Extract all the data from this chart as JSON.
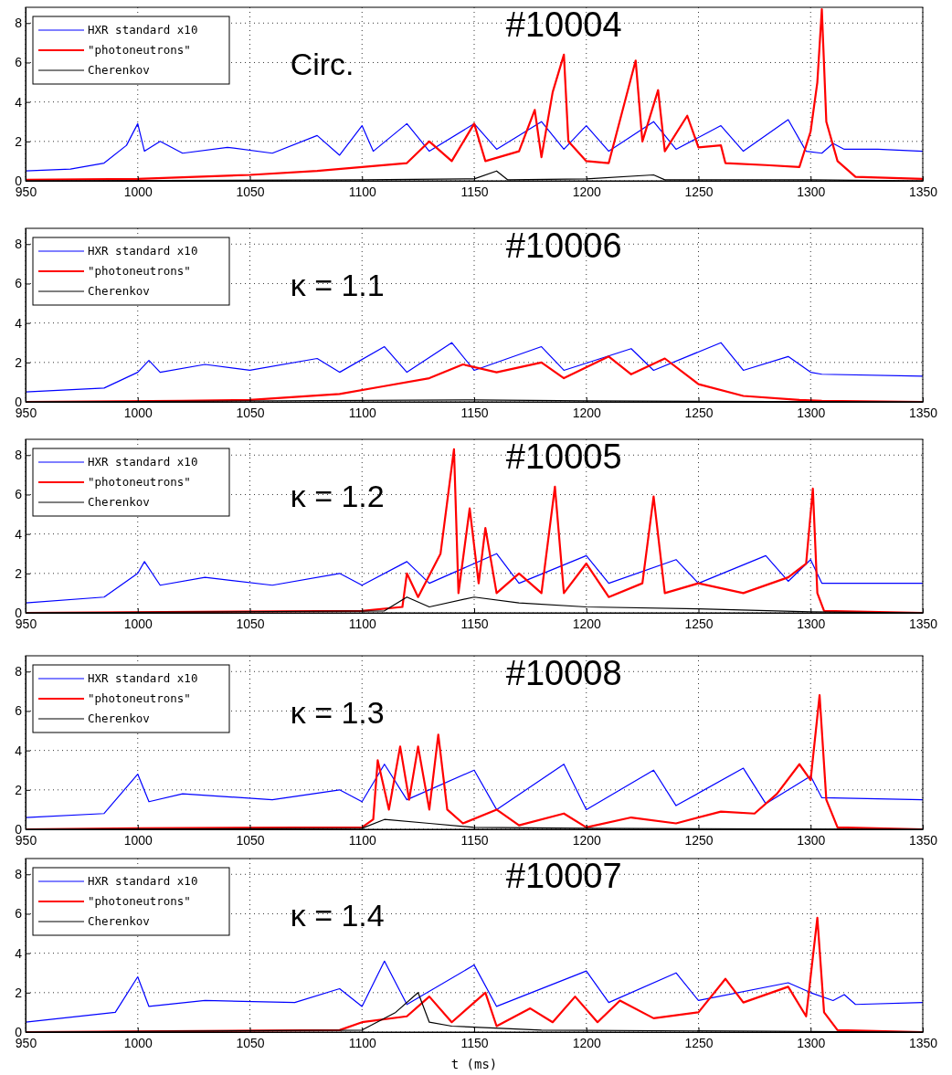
{
  "chart_data": [
    {
      "type": "line",
      "xlim": [
        950,
        1350
      ],
      "xticks": [
        950,
        1000,
        1050,
        1100,
        1150,
        1200,
        1250,
        1300,
        1350
      ],
      "ylim": [
        0,
        8.8
      ],
      "yticks": [
        0,
        2,
        4,
        6,
        8
      ],
      "grid": true,
      "legend": "top left",
      "annotations": [
        "#10004",
        "Circ."
      ],
      "series": [
        {
          "name": "HXR standard x10",
          "color": "#0000ff",
          "x": [
            950,
            970,
            985,
            995,
            1000,
            1003,
            1010,
            1020,
            1040,
            1060,
            1080,
            1090,
            1100,
            1105,
            1120,
            1130,
            1150,
            1160,
            1180,
            1190,
            1200,
            1210,
            1230,
            1240,
            1260,
            1270,
            1290,
            1298,
            1305,
            1310,
            1315,
            1330,
            1350
          ],
          "values": [
            0.5,
            0.6,
            0.9,
            1.8,
            2.9,
            1.5,
            2.0,
            1.4,
            1.7,
            1.4,
            2.3,
            1.3,
            2.8,
            1.5,
            2.9,
            1.5,
            2.9,
            1.6,
            3.0,
            1.6,
            2.8,
            1.5,
            3.0,
            1.6,
            2.8,
            1.5,
            3.1,
            1.5,
            1.4,
            1.9,
            1.6,
            1.6,
            1.5
          ]
        },
        {
          "name": "\"photoneutrons\"",
          "color": "#ff0000",
          "x": [
            950,
            1000,
            1050,
            1080,
            1100,
            1120,
            1130,
            1140,
            1150,
            1155,
            1170,
            1177,
            1180,
            1185,
            1190,
            1192,
            1200,
            1210,
            1222,
            1225,
            1232,
            1235,
            1245,
            1250,
            1260,
            1262,
            1280,
            1295,
            1300,
            1303,
            1305,
            1307,
            1312,
            1320,
            1350
          ],
          "values": [
            0.05,
            0.1,
            0.3,
            0.5,
            0.7,
            0.9,
            2.0,
            1.0,
            2.9,
            1.0,
            1.5,
            3.6,
            1.2,
            4.5,
            6.4,
            2.0,
            1.0,
            0.9,
            6.1,
            2.0,
            4.6,
            1.5,
            3.3,
            1.7,
            1.8,
            0.9,
            0.8,
            0.7,
            2.5,
            5.0,
            8.7,
            3.0,
            1.0,
            0.2,
            0.1
          ]
        },
        {
          "name": "Cherenkov",
          "color": "#000000",
          "x": [
            950,
            1100,
            1150,
            1160,
            1165,
            1200,
            1230,
            1235,
            1300,
            1350
          ],
          "values": [
            0,
            0.05,
            0.1,
            0.5,
            0.05,
            0.1,
            0.3,
            0.05,
            0.05,
            0
          ]
        }
      ]
    },
    {
      "type": "line",
      "xlim": [
        950,
        1350
      ],
      "xticks": [
        950,
        1000,
        1050,
        1100,
        1150,
        1200,
        1250,
        1300,
        1350
      ],
      "ylim": [
        0,
        8.8
      ],
      "yticks": [
        0,
        2,
        4,
        6,
        8
      ],
      "grid": true,
      "legend": "top left",
      "annotations": [
        "#10006",
        "κ = 1.1"
      ],
      "series": [
        {
          "name": "HXR standard x10",
          "color": "#0000ff",
          "x": [
            950,
            985,
            1000,
            1005,
            1010,
            1030,
            1050,
            1080,
            1090,
            1110,
            1120,
            1140,
            1150,
            1180,
            1190,
            1220,
            1230,
            1260,
            1270,
            1290,
            1300,
            1305,
            1350
          ],
          "values": [
            0.5,
            0.7,
            1.5,
            2.1,
            1.5,
            1.9,
            1.6,
            2.2,
            1.5,
            2.8,
            1.5,
            3.0,
            1.6,
            2.8,
            1.6,
            2.7,
            1.6,
            3.0,
            1.6,
            2.3,
            1.5,
            1.4,
            1.3
          ]
        },
        {
          "name": "\"photoneutrons\"",
          "color": "#ff0000",
          "x": [
            950,
            1020,
            1050,
            1090,
            1110,
            1130,
            1145,
            1160,
            1180,
            1190,
            1210,
            1220,
            1235,
            1250,
            1270,
            1295,
            1305,
            1350
          ],
          "values": [
            0,
            0.05,
            0.1,
            0.4,
            0.8,
            1.2,
            1.9,
            1.5,
            2.0,
            1.2,
            2.3,
            1.4,
            2.2,
            0.9,
            0.3,
            0.1,
            0.05,
            0
          ]
        },
        {
          "name": "Cherenkov",
          "color": "#000000",
          "x": [
            950,
            1150,
            1200,
            1350
          ],
          "values": [
            0,
            0.1,
            0.05,
            0
          ]
        }
      ]
    },
    {
      "type": "line",
      "xlim": [
        950,
        1350
      ],
      "xticks": [
        950,
        1000,
        1050,
        1100,
        1150,
        1200,
        1250,
        1300,
        1350
      ],
      "ylim": [
        0,
        8.8
      ],
      "yticks": [
        0,
        2,
        4,
        6,
        8
      ],
      "grid": true,
      "legend": "top left",
      "annotations": [
        "#10005",
        "κ = 1.2"
      ],
      "series": [
        {
          "name": "HXR standard x10",
          "color": "#0000ff",
          "x": [
            950,
            985,
            1000,
            1003,
            1010,
            1030,
            1060,
            1090,
            1100,
            1120,
            1130,
            1160,
            1170,
            1200,
            1210,
            1240,
            1250,
            1280,
            1290,
            1300,
            1305,
            1350
          ],
          "values": [
            0.5,
            0.8,
            2.0,
            2.6,
            1.4,
            1.8,
            1.4,
            2.0,
            1.4,
            2.6,
            1.5,
            3.0,
            1.5,
            2.9,
            1.5,
            2.7,
            1.5,
            2.9,
            1.6,
            2.7,
            1.5,
            1.5
          ]
        },
        {
          "name": "\"photoneutrons\"",
          "color": "#ff0000",
          "x": [
            950,
            1100,
            1118,
            1120,
            1125,
            1135,
            1141,
            1143,
            1148,
            1152,
            1155,
            1160,
            1170,
            1180,
            1186,
            1190,
            1200,
            1210,
            1225,
            1230,
            1235,
            1250,
            1270,
            1290,
            1298,
            1301,
            1303,
            1306,
            1350
          ],
          "values": [
            0,
            0.1,
            0.3,
            2.0,
            0.8,
            3.0,
            8.3,
            1.0,
            5.3,
            1.5,
            4.3,
            1.0,
            2.0,
            1.0,
            6.4,
            1.0,
            2.5,
            0.8,
            1.5,
            5.9,
            1.0,
            1.5,
            1.0,
            1.8,
            2.5,
            6.3,
            1.0,
            0.1,
            0
          ]
        },
        {
          "name": "Cherenkov",
          "color": "#000000",
          "x": [
            950,
            1110,
            1120,
            1130,
            1150,
            1170,
            1200,
            1250,
            1300,
            1350
          ],
          "values": [
            0,
            0.1,
            0.8,
            0.3,
            0.8,
            0.5,
            0.3,
            0.2,
            0.05,
            0
          ]
        }
      ]
    },
    {
      "type": "line",
      "xlim": [
        950,
        1350
      ],
      "xticks": [
        950,
        1000,
        1050,
        1100,
        1150,
        1200,
        1250,
        1300,
        1350
      ],
      "ylim": [
        0,
        8.8
      ],
      "yticks": [
        0,
        2,
        4,
        6,
        8
      ],
      "grid": true,
      "legend": "top left",
      "annotations": [
        "#10008",
        "κ = 1.3"
      ],
      "series": [
        {
          "name": "HXR standard x10",
          "color": "#0000ff",
          "x": [
            950,
            985,
            1000,
            1005,
            1020,
            1060,
            1090,
            1100,
            1110,
            1120,
            1150,
            1160,
            1190,
            1200,
            1230,
            1240,
            1270,
            1280,
            1300,
            1305,
            1350
          ],
          "values": [
            0.6,
            0.8,
            2.8,
            1.4,
            1.8,
            1.5,
            2.0,
            1.4,
            3.3,
            1.5,
            3.0,
            1.0,
            3.3,
            1.0,
            3.0,
            1.2,
            3.1,
            1.3,
            2.7,
            1.6,
            1.5
          ]
        },
        {
          "name": "\"photoneutrons\"",
          "color": "#ff0000",
          "x": [
            950,
            1000,
            1100,
            1105,
            1107,
            1112,
            1117,
            1121,
            1125,
            1130,
            1134,
            1138,
            1145,
            1160,
            1170,
            1190,
            1200,
            1220,
            1240,
            1260,
            1275,
            1285,
            1295,
            1300,
            1304,
            1307,
            1312,
            1350
          ],
          "values": [
            0,
            0.05,
            0.1,
            0.5,
            3.5,
            1.0,
            4.2,
            1.5,
            4.2,
            1.0,
            4.8,
            1.0,
            0.3,
            1.0,
            0.2,
            0.8,
            0.1,
            0.6,
            0.3,
            0.9,
            0.8,
            1.8,
            3.3,
            2.5,
            6.8,
            1.5,
            0.1,
            0
          ]
        },
        {
          "name": "Cherenkov",
          "color": "#000000",
          "x": [
            950,
            1100,
            1110,
            1130,
            1150,
            1200,
            1350
          ],
          "values": [
            0,
            0.05,
            0.5,
            0.3,
            0.1,
            0.05,
            0
          ]
        }
      ]
    },
    {
      "type": "line",
      "xlim": [
        950,
        1350
      ],
      "xticks": [
        950,
        1000,
        1050,
        1100,
        1150,
        1200,
        1250,
        1300,
        1350
      ],
      "ylim": [
        0,
        8.8
      ],
      "yticks": [
        0,
        2,
        4,
        6,
        8
      ],
      "grid": true,
      "legend": "top left",
      "xlabel": "t (ms)",
      "annotations": [
        "#10007",
        "κ = 1.4"
      ],
      "series": [
        {
          "name": "HXR standard x10",
          "color": "#0000ff",
          "x": [
            950,
            990,
            1000,
            1005,
            1030,
            1070,
            1090,
            1100,
            1110,
            1120,
            1150,
            1160,
            1200,
            1210,
            1240,
            1250,
            1290,
            1300,
            1310,
            1315,
            1320,
            1350
          ],
          "values": [
            0.5,
            1.0,
            2.8,
            1.3,
            1.6,
            1.5,
            2.2,
            1.3,
            3.6,
            1.4,
            3.4,
            1.3,
            3.1,
            1.5,
            3.0,
            1.6,
            2.5,
            2.0,
            1.6,
            1.9,
            1.4,
            1.5
          ]
        },
        {
          "name": "\"photoneutrons\"",
          "color": "#ff0000",
          "x": [
            950,
            1090,
            1100,
            1120,
            1130,
            1140,
            1155,
            1160,
            1175,
            1185,
            1195,
            1205,
            1215,
            1230,
            1250,
            1262,
            1270,
            1290,
            1298,
            1303,
            1306,
            1312,
            1350
          ],
          "values": [
            0,
            0.1,
            0.5,
            0.8,
            1.8,
            0.5,
            2.0,
            0.3,
            1.2,
            0.5,
            1.8,
            0.5,
            1.6,
            0.7,
            1.0,
            2.7,
            1.5,
            2.3,
            0.8,
            5.8,
            1.0,
            0.1,
            0
          ]
        },
        {
          "name": "Cherenkov",
          "color": "#000000",
          "x": [
            950,
            1100,
            1115,
            1125,
            1130,
            1140,
            1180,
            1350
          ],
          "values": [
            0,
            0.1,
            1.0,
            2.0,
            0.5,
            0.3,
            0.1,
            0
          ]
        }
      ]
    }
  ]
}
